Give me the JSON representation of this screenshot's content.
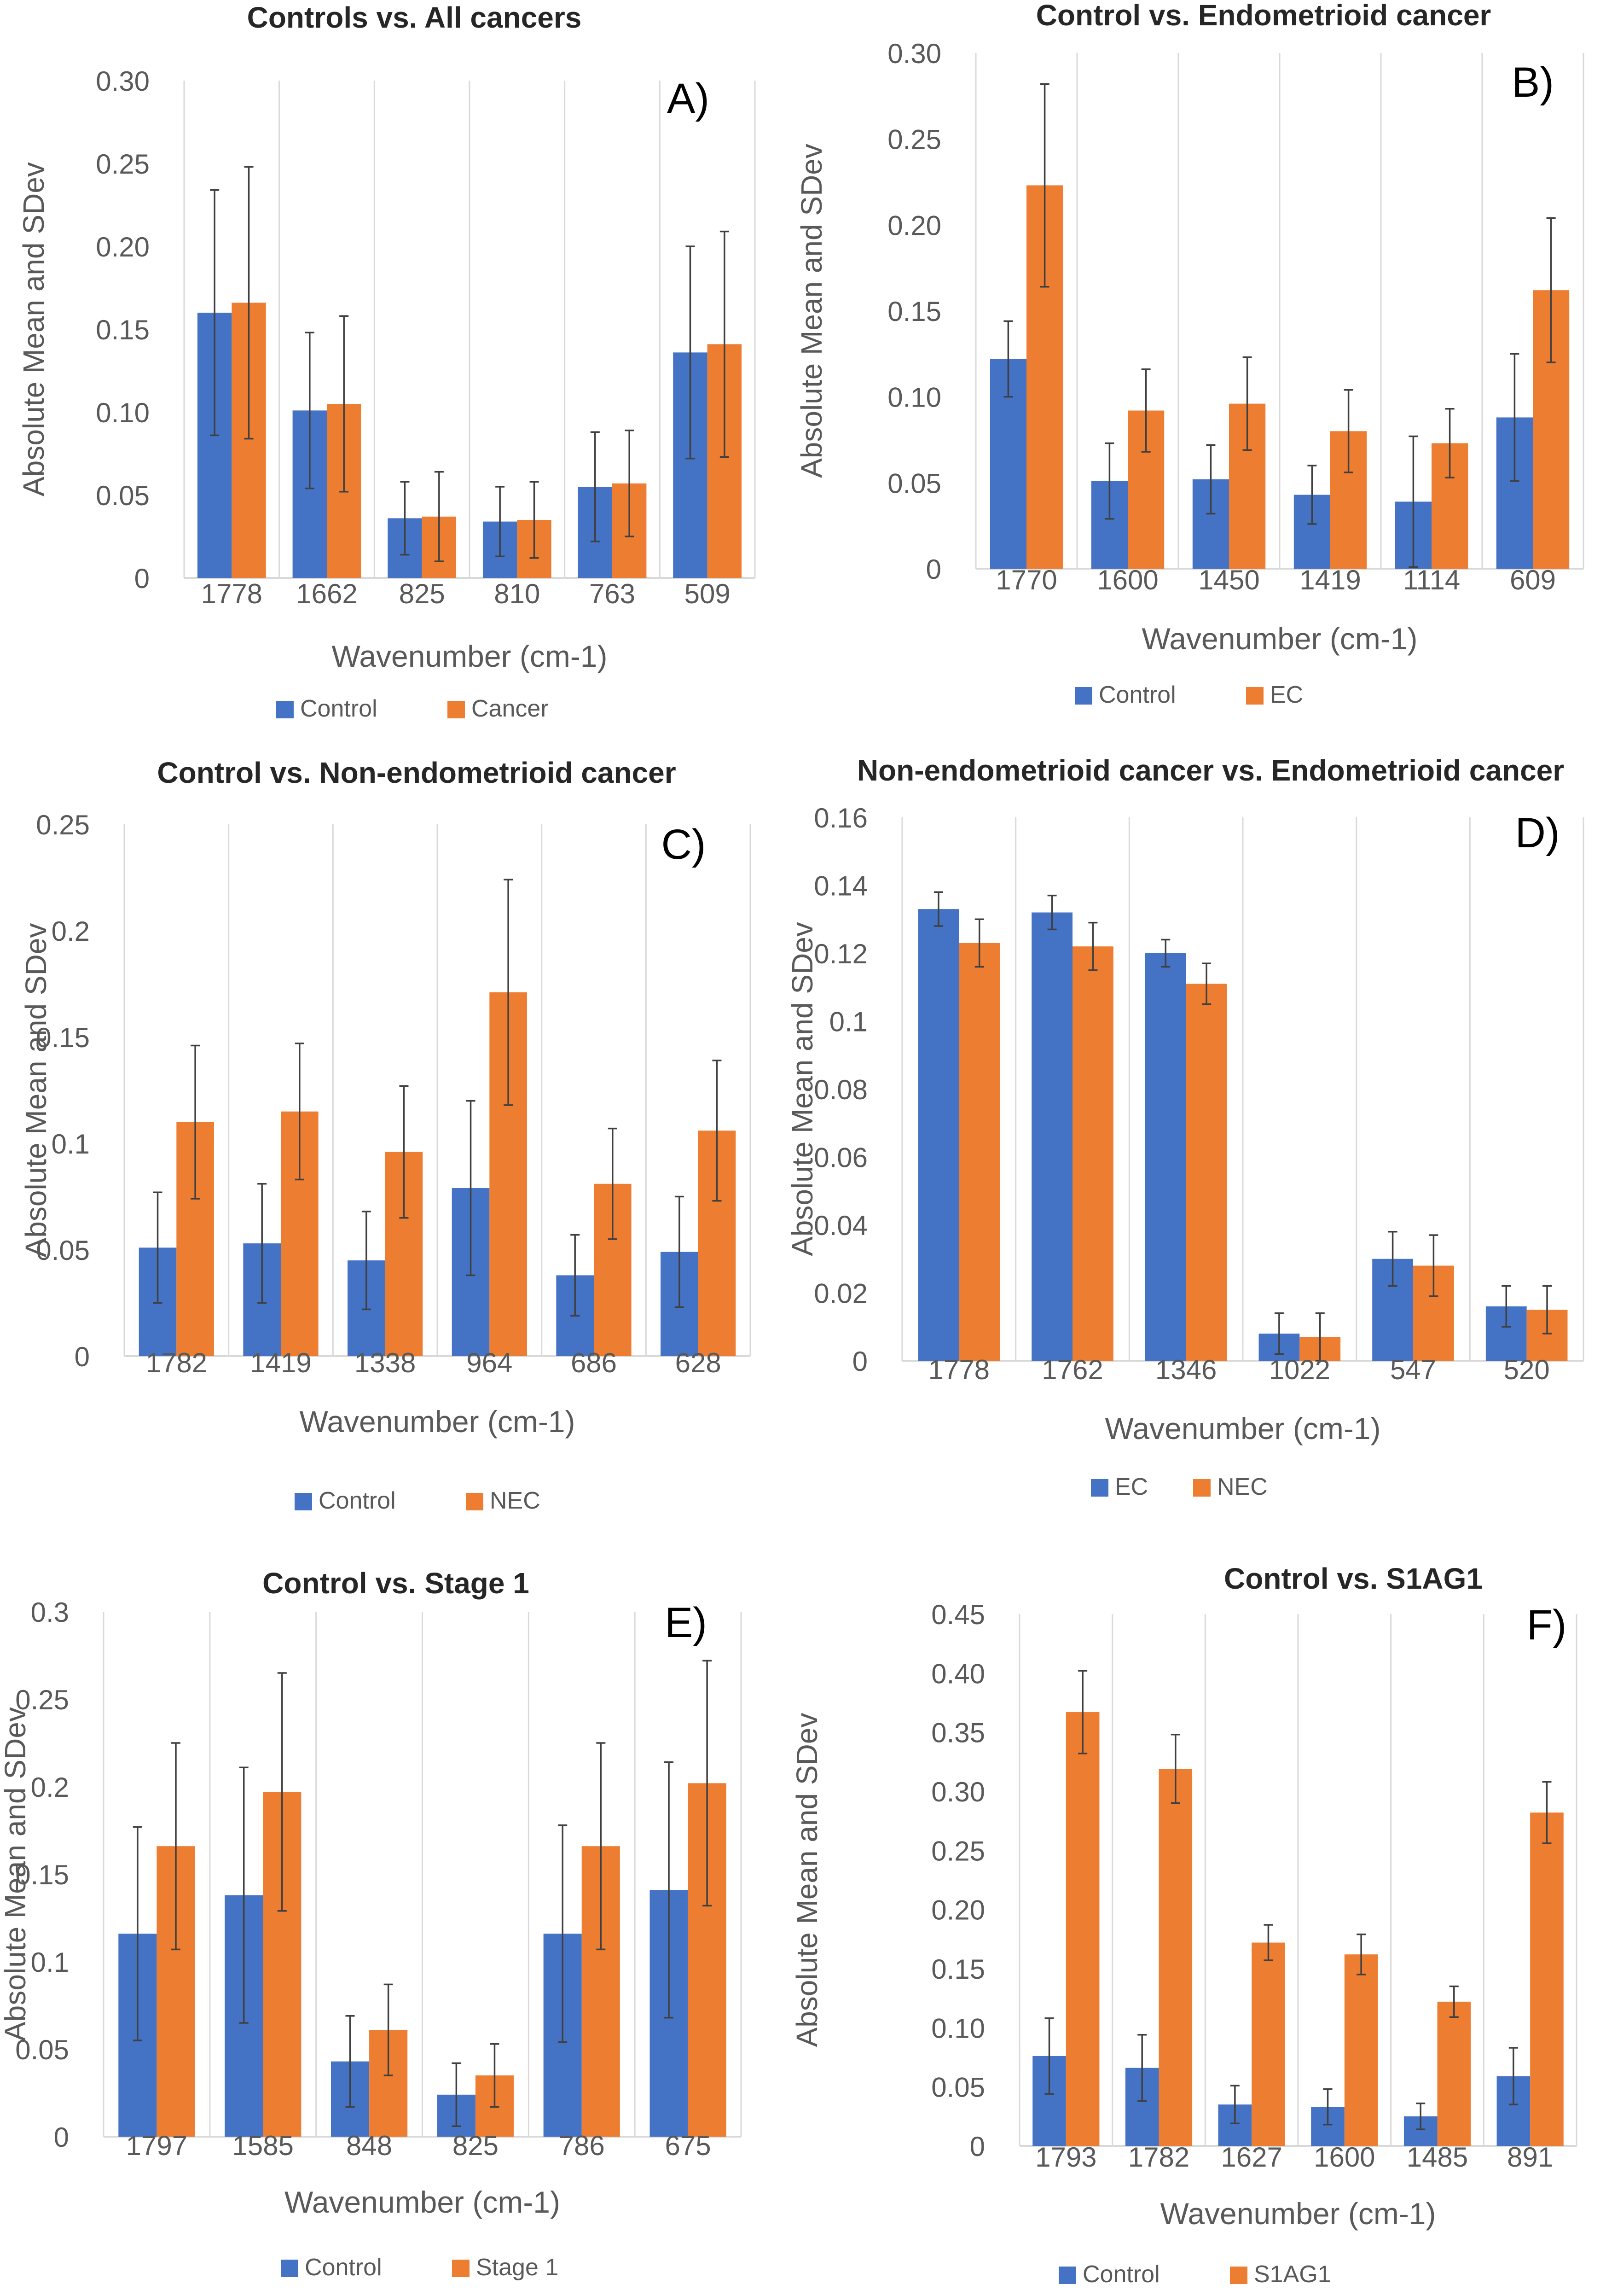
{
  "figure": {
    "colors": {
      "control": "#4472C4",
      "case": "#ED7D31",
      "grid": "#D9D9D9",
      "text": "#595959",
      "title": "#262626",
      "error": "#404040"
    }
  },
  "chart_data": [
    {
      "id": "A",
      "type": "bar",
      "title": "Controls vs. All cancers",
      "panel_label": "A)",
      "xlabel": "Wavenumber (cm-1)",
      "ylabel": "Absolute Mean and SDev",
      "categories": [
        "1778",
        "1662",
        "825",
        "810",
        "763",
        "509"
      ],
      "ylim": [
        0,
        0.3
      ],
      "yticks": [
        "0",
        "0.05",
        "0.10",
        "0.15",
        "0.20",
        "0.25",
        "0.30"
      ],
      "series": [
        {
          "name": "Control",
          "values": [
            0.16,
            0.101,
            0.036,
            0.034,
            0.055,
            0.136
          ],
          "errors": [
            0.074,
            0.047,
            0.022,
            0.021,
            0.033,
            0.064
          ]
        },
        {
          "name": "Cancer",
          "values": [
            0.166,
            0.105,
            0.037,
            0.035,
            0.057,
            0.141
          ],
          "errors": [
            0.082,
            0.053,
            0.027,
            0.023,
            0.032,
            0.068
          ]
        }
      ]
    },
    {
      "id": "B",
      "type": "bar",
      "title": "Control vs. Endometrioid cancer",
      "panel_label": "B)",
      "xlabel": "Wavenumber (cm-1)",
      "ylabel": "Absolute Mean and SDev",
      "categories": [
        "1770",
        "1600",
        "1450",
        "1419",
        "1114",
        "609"
      ],
      "ylim": [
        0,
        0.3
      ],
      "yticks": [
        "0",
        "0.05",
        "0.10",
        "0.15",
        "0.20",
        "0.25",
        "0.30"
      ],
      "series": [
        {
          "name": "Control",
          "values": [
            0.122,
            0.051,
            0.052,
            0.043,
            0.039,
            0.088
          ],
          "errors": [
            0.022,
            0.022,
            0.02,
            0.017,
            0.038,
            0.037
          ]
        },
        {
          "name": "EC",
          "values": [
            0.223,
            0.092,
            0.096,
            0.08,
            0.073,
            0.162
          ],
          "errors": [
            0.059,
            0.024,
            0.027,
            0.024,
            0.02,
            0.042
          ]
        }
      ]
    },
    {
      "id": "C",
      "type": "bar",
      "title": "Control vs. Non-endometrioid cancer",
      "panel_label": "C)",
      "xlabel": "Wavenumber (cm-1)",
      "ylabel": "Absolute Mean and SDev",
      "categories": [
        "1782",
        "1419",
        "1338",
        "964",
        "686",
        "628"
      ],
      "ylim": [
        0,
        0.25
      ],
      "yticks": [
        "0",
        "0.05",
        "0.1",
        "0.15",
        "0.2",
        "0.25"
      ],
      "series": [
        {
          "name": "Control",
          "values": [
            0.051,
            0.053,
            0.045,
            0.079,
            0.038,
            0.049
          ],
          "errors": [
            0.026,
            0.028,
            0.023,
            0.041,
            0.019,
            0.026
          ]
        },
        {
          "name": "NEC",
          "values": [
            0.11,
            0.115,
            0.096,
            0.171,
            0.081,
            0.106
          ],
          "errors": [
            0.036,
            0.032,
            0.031,
            0.053,
            0.026,
            0.033
          ]
        }
      ]
    },
    {
      "id": "D",
      "type": "bar",
      "title": "Non-endometrioid cancer vs. Endometrioid cancer",
      "panel_label": "D)",
      "xlabel": "Wavenumber (cm-1)",
      "ylabel": "Absolute Mean and SDev",
      "categories": [
        "1778",
        "1762",
        "1346",
        "1022",
        "547",
        "520"
      ],
      "ylim": [
        0,
        0.16
      ],
      "yticks": [
        "0",
        "0.02",
        "0.04",
        "0.06",
        "0.08",
        "0.1",
        "0.12",
        "0.14",
        "0.16"
      ],
      "series": [
        {
          "name": "EC",
          "values": [
            0.133,
            0.132,
            0.12,
            0.008,
            0.03,
            0.016
          ],
          "errors": [
            0.005,
            0.005,
            0.004,
            0.006,
            0.008,
            0.006
          ]
        },
        {
          "name": "NEC",
          "values": [
            0.123,
            0.122,
            0.111,
            0.007,
            0.028,
            0.015
          ],
          "errors": [
            0.007,
            0.007,
            0.006,
            0.007,
            0.009,
            0.007
          ]
        }
      ]
    },
    {
      "id": "E",
      "type": "bar",
      "title": "Control vs. Stage 1",
      "panel_label": "E)",
      "xlabel": "Wavenumber (cm-1)",
      "ylabel": "Absolute Mean and SDev",
      "categories": [
        "1797",
        "1585",
        "848",
        "825",
        "786",
        "675"
      ],
      "ylim": [
        0,
        0.3
      ],
      "yticks": [
        "0",
        "0.05",
        "0.1",
        "0.15",
        "0.2",
        "0.25",
        "0.3"
      ],
      "series": [
        {
          "name": "Control",
          "values": [
            0.116,
            0.138,
            0.043,
            0.024,
            0.116,
            0.141
          ],
          "errors": [
            0.061,
            0.073,
            0.026,
            0.018,
            0.062,
            0.073
          ]
        },
        {
          "name": "Stage 1",
          "values": [
            0.166,
            0.197,
            0.061,
            0.035,
            0.166,
            0.202
          ],
          "errors": [
            0.059,
            0.068,
            0.026,
            0.018,
            0.059,
            0.07
          ]
        }
      ]
    },
    {
      "id": "F",
      "type": "bar",
      "title": "Control vs. S1AG1",
      "panel_label": "F)",
      "xlabel": "Wavenumber (cm-1)",
      "ylabel": "Absolute Mean and SDev",
      "categories": [
        "1793",
        "1782",
        "1627",
        "1600",
        "1485",
        "891"
      ],
      "ylim": [
        0,
        0.45
      ],
      "yticks": [
        "0",
        "0.05",
        "0.10",
        "0.15",
        "0.20",
        "0.25",
        "0.30",
        "0.35",
        "0.40",
        "0.45"
      ],
      "series": [
        {
          "name": "Control",
          "values": [
            0.076,
            0.066,
            0.035,
            0.033,
            0.025,
            0.059
          ],
          "errors": [
            0.032,
            0.028,
            0.016,
            0.015,
            0.011,
            0.024
          ]
        },
        {
          "name": "S1AG1",
          "values": [
            0.367,
            0.319,
            0.172,
            0.162,
            0.122,
            0.282
          ],
          "errors": [
            0.035,
            0.029,
            0.015,
            0.017,
            0.013,
            0.026
          ]
        }
      ]
    }
  ]
}
